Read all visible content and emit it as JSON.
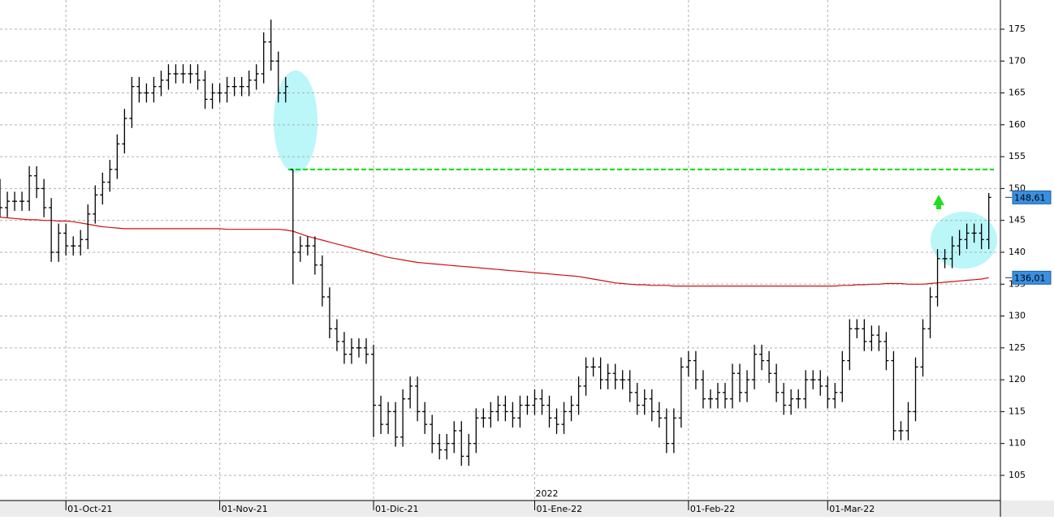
{
  "chart_data": {
    "type": "ohlc",
    "categories": [
      null,
      null,
      null,
      null,
      null,
      null,
      null,
      null,
      null,
      "01-Oct-21",
      null,
      null,
      null,
      null,
      null,
      null,
      null,
      null,
      null,
      null,
      null,
      null,
      null,
      null,
      null,
      null,
      null,
      null,
      null,
      null,
      "01-Nov-21",
      null,
      null,
      null,
      null,
      null,
      null,
      null,
      null,
      null,
      null,
      null,
      null,
      null,
      null,
      null,
      null,
      null,
      null,
      null,
      null,
      "01-Dic-21",
      null,
      null,
      null,
      null,
      null,
      null,
      null,
      null,
      null,
      null,
      null,
      null,
      null,
      null,
      null,
      null,
      null,
      null,
      null,
      null,
      null,
      "01-Ene-22",
      null,
      null,
      null,
      null,
      null,
      null,
      null,
      null,
      null,
      null,
      null,
      null,
      null,
      null,
      null,
      null,
      null,
      null,
      null,
      null,
      "01-Feb-22",
      null,
      null,
      null,
      null,
      null,
      null,
      null,
      null,
      null,
      null,
      null,
      null,
      null,
      null,
      null,
      null,
      null,
      null,
      "01-Mar-22",
      null,
      null,
      null,
      null,
      null,
      null,
      null,
      null,
      null,
      null,
      null,
      null,
      null,
      null,
      null,
      null,
      null,
      null,
      null,
      null,
      null,
      null
    ],
    "open": [
      150,
      147,
      148,
      148,
      148,
      152,
      150,
      147,
      140,
      143,
      141,
      141,
      142,
      146,
      149,
      151,
      153,
      157,
      161,
      166,
      165,
      165,
      166,
      167,
      168,
      168,
      168,
      168,
      167,
      164,
      165,
      165,
      166,
      166,
      166,
      167,
      168,
      173,
      170,
      165,
      153,
      140,
      141,
      141,
      138,
      133,
      128,
      126,
      124,
      125,
      125,
      124,
      116,
      113,
      115,
      111,
      117,
      119,
      115,
      113,
      110,
      109,
      110,
      112,
      108,
      110,
      114,
      114,
      115,
      116,
      115,
      114,
      116,
      116,
      117,
      116,
      114,
      113,
      115,
      116,
      119,
      122,
      122,
      120,
      121,
      120,
      120,
      118,
      116,
      117,
      115,
      114,
      110,
      114,
      122,
      123,
      120,
      117,
      117,
      118,
      117,
      121,
      118,
      120,
      124,
      123,
      121,
      118,
      116,
      117,
      117,
      120,
      120,
      119,
      117,
      118,
      123,
      128,
      128,
      126,
      127,
      126,
      123,
      112,
      112,
      115,
      122,
      128,
      133,
      139,
      139,
      141,
      142,
      143,
      143,
      142
    ],
    "high": [
      151.5,
      149.5,
      149.5,
      149.5,
      153.5,
      153.5,
      151.5,
      148.5,
      144.5,
      144.5,
      142.5,
      143.5,
      147.5,
      150.5,
      152.5,
      154.5,
      158.5,
      162.5,
      167.5,
      167.5,
      166.5,
      167.5,
      168.5,
      169.5,
      169.5,
      169.5,
      169.5,
      169.5,
      168.5,
      166.5,
      166.5,
      167.5,
      167.5,
      167.5,
      168.5,
      169.5,
      174.5,
      176.5,
      171.5,
      167.5,
      153,
      142.5,
      142.5,
      142.5,
      139.5,
      134.5,
      129.5,
      127.5,
      126.5,
      126.5,
      126.5,
      125.5,
      117.5,
      116.5,
      116.5,
      118.5,
      120.5,
      120.5,
      116.5,
      114.5,
      111.5,
      111.5,
      113.5,
      113.5,
      111.5,
      115.5,
      115.5,
      116.5,
      117.5,
      117.5,
      116.5,
      117.5,
      117.5,
      118.5,
      118.5,
      117.5,
      115.5,
      116.5,
      117.5,
      120.5,
      123.5,
      123.5,
      123.5,
      122.5,
      122.5,
      121.5,
      121.5,
      119.5,
      118.5,
      118.5,
      116.5,
      115.5,
      115.5,
      123.5,
      124.5,
      124.5,
      121.5,
      118.5,
      119.5,
      119.5,
      122.5,
      122.5,
      121.5,
      125.5,
      125.5,
      124.5,
      122.5,
      119.5,
      118.5,
      118.5,
      121.5,
      121.5,
      121.5,
      120.5,
      119.5,
      124.5,
      129.5,
      129.5,
      129.5,
      128.5,
      128.5,
      127.5,
      124.5,
      113.5,
      116.5,
      123.5,
      129.5,
      134.5,
      140.5,
      140.5,
      142.5,
      143.5,
      144.5,
      144.5,
      144.5,
      149.3
    ],
    "low": [
      145.5,
      145.5,
      146.5,
      146.5,
      146.5,
      148.5,
      145.5,
      138.5,
      138.5,
      139.5,
      139.5,
      139.5,
      140.5,
      144.5,
      147.5,
      149.5,
      151.5,
      155.5,
      159.5,
      163.5,
      163.5,
      163.5,
      164.5,
      165.5,
      166.5,
      166.5,
      166.5,
      165.5,
      162.5,
      162.5,
      163.5,
      163.5,
      164.5,
      164.5,
      164.5,
      165.5,
      166.5,
      168.5,
      163.5,
      163.5,
      135,
      138.5,
      139.5,
      136.5,
      131.5,
      126.5,
      124.5,
      122.5,
      122.5,
      123.5,
      122.5,
      111,
      111.5,
      111.5,
      109.5,
      109.5,
      115.5,
      113.5,
      111.5,
      108.5,
      107.5,
      107.5,
      108.5,
      106.5,
      106.5,
      108.5,
      112.5,
      112.5,
      113.5,
      113.5,
      112.5,
      112.5,
      114.5,
      114.5,
      114.5,
      112.5,
      111.5,
      111.5,
      113.5,
      114.5,
      117.5,
      120.5,
      118.5,
      118.5,
      118.5,
      118.5,
      116.5,
      114.5,
      114.5,
      113.5,
      112.5,
      108.5,
      108.5,
      112.5,
      120.5,
      118.5,
      115.5,
      115.5,
      115.5,
      115.5,
      115.5,
      116.5,
      116.5,
      118.5,
      121.5,
      119.5,
      116.5,
      114.5,
      114.5,
      115.5,
      115.5,
      118.5,
      117.5,
      115.5,
      115.5,
      116.5,
      121.5,
      126.5,
      124.5,
      124.5,
      124.5,
      121.5,
      110.5,
      110.5,
      110.5,
      113.5,
      120.5,
      126.5,
      131.5,
      137.5,
      137.5,
      139.5,
      140.5,
      141.5,
      140.5,
      140.5
    ],
    "close": [
      147,
      148,
      148,
      148,
      152,
      150,
      147,
      140,
      143,
      141,
      141,
      142,
      146,
      149,
      151,
      153,
      157,
      161,
      166,
      165,
      165,
      166,
      167,
      168,
      168,
      168,
      168,
      167,
      164,
      165,
      165,
      166,
      166,
      166,
      167,
      168,
      173,
      170,
      165,
      166,
      140,
      141,
      141,
      138,
      133,
      128,
      126,
      124,
      125,
      125,
      124,
      116,
      113,
      115,
      111,
      117,
      119,
      115,
      113,
      110,
      109,
      110,
      112,
      108,
      110,
      114,
      114,
      115,
      116,
      115,
      114,
      116,
      116,
      117,
      116,
      114,
      113,
      115,
      116,
      119,
      122,
      122,
      120,
      121,
      120,
      120,
      118,
      116,
      117,
      115,
      114,
      110,
      114,
      122,
      123,
      120,
      117,
      117,
      118,
      117,
      121,
      118,
      120,
      124,
      123,
      121,
      118,
      116,
      117,
      117,
      120,
      120,
      119,
      117,
      118,
      123,
      128,
      128,
      126,
      127,
      126,
      123,
      112,
      112,
      115,
      122,
      128,
      133,
      139,
      139,
      141,
      142,
      143,
      143,
      142,
      148.61
    ],
    "bar_color": "#000000",
    "moving_average": {
      "color": "#d01010",
      "values": [
        145.5,
        145.4,
        145.3,
        145.2,
        145.1,
        145.1,
        145.0,
        145.0,
        144.9,
        144.9,
        144.8,
        144.6,
        144.4,
        144.2,
        144.0,
        143.9,
        143.8,
        143.7,
        143.7,
        143.7,
        143.7,
        143.7,
        143.7,
        143.7,
        143.7,
        143.7,
        143.7,
        143.7,
        143.7,
        143.7,
        143.7,
        143.6,
        143.6,
        143.6,
        143.6,
        143.6,
        143.6,
        143.6,
        143.6,
        143.5,
        143.3,
        142.9,
        142.5,
        142.2,
        141.9,
        141.6,
        141.3,
        141.0,
        140.7,
        140.4,
        140.1,
        139.8,
        139.5,
        139.2,
        139.0,
        138.8,
        138.6,
        138.4,
        138.3,
        138.2,
        138.1,
        138.0,
        137.9,
        137.8,
        137.7,
        137.6,
        137.5,
        137.4,
        137.3,
        137.2,
        137.1,
        137.0,
        136.9,
        136.8,
        136.7,
        136.6,
        136.5,
        136.4,
        136.3,
        136.2,
        136.0,
        135.8,
        135.6,
        135.4,
        135.2,
        135.1,
        135.0,
        134.9,
        134.9,
        134.8,
        134.8,
        134.8,
        134.7,
        134.7,
        134.7,
        134.7,
        134.7,
        134.7,
        134.7,
        134.7,
        134.7,
        134.7,
        134.7,
        134.7,
        134.7,
        134.7,
        134.7,
        134.7,
        134.7,
        134.7,
        134.7,
        134.7,
        134.7,
        134.7,
        134.7,
        134.8,
        134.8,
        134.9,
        134.9,
        135.0,
        135.0,
        135.1,
        135.1,
        135.1,
        135.0,
        135.0,
        135.0,
        135.1,
        135.2,
        135.3,
        135.4,
        135.5,
        135.6,
        135.7,
        135.8,
        136.01
      ]
    },
    "reference_line": {
      "value": 153,
      "color": "#00dd00"
    },
    "price_tags": [
      {
        "value": 148.61,
        "label": "148,61"
      },
      {
        "value": 136.01,
        "label": "136,01"
      }
    ],
    "year_label": "2022",
    "ylim": [
      101.05,
      179.58
    ],
    "yticks": [
      105,
      110,
      115,
      120,
      125,
      130,
      135,
      140,
      145,
      150,
      155,
      160,
      165,
      170,
      175
    ],
    "grid": true
  }
}
